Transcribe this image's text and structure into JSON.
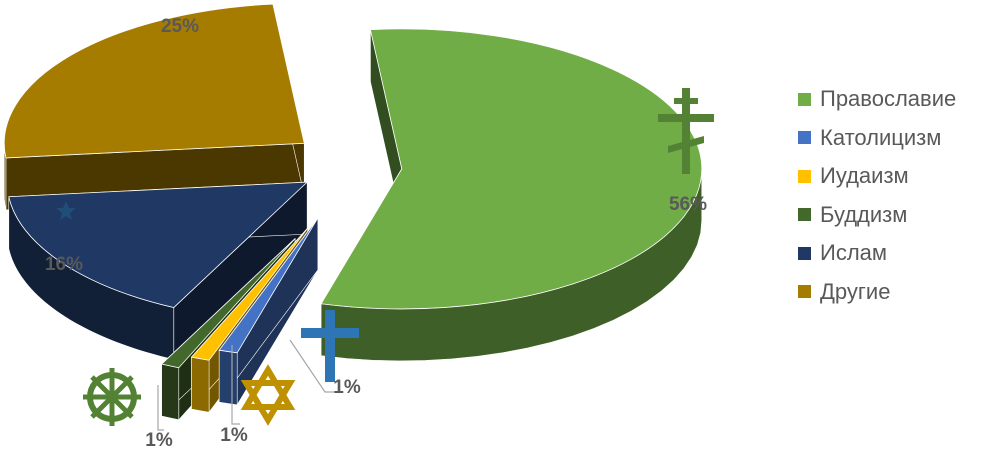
{
  "chart_data": {
    "type": "pie",
    "categories": [
      "Православие",
      "Католицизм",
      "Иудаизм",
      "Буддизм",
      "Ислам",
      "Другие"
    ],
    "values": [
      56,
      1,
      1,
      1,
      16,
      25
    ],
    "labels": [
      "56%",
      "1%",
      "1%",
      "1%",
      "16%",
      "25%"
    ],
    "colors": [
      "#70ad47",
      "#4472c4",
      "#ffc000",
      "#43682b",
      "#1f3864",
      "#a67c00"
    ],
    "icons": [
      "orthodox-cross-icon",
      "latin-cross-icon",
      "star-of-david-icon",
      "dharma-wheel-icon",
      "crescent-star-icon",
      ""
    ],
    "icon_colors": [
      "#548235",
      "#2e75b6",
      "#bf9000",
      "#548235",
      "#1f4e79",
      ""
    ],
    "legend_position": "right"
  }
}
